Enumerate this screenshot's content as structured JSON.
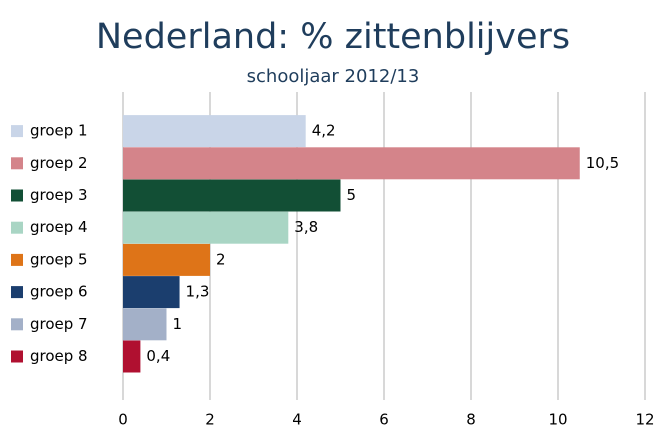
{
  "chart_data": {
    "type": "bar",
    "orientation": "horizontal",
    "title": "Nederland: % zittenblijvers",
    "subtitle": "schooljaar 2012/13",
    "categories": [
      "groep 1",
      "groep 2",
      "groep 3",
      "groep 4",
      "groep 5",
      "groep 6",
      "groep 7",
      "groep 8"
    ],
    "values": [
      4.2,
      10.5,
      5,
      3.8,
      2,
      1.3,
      1,
      0.4
    ],
    "value_labels": [
      "4,2",
      "10,5",
      "5",
      "3,8",
      "2",
      "1,3",
      "1",
      "0,4"
    ],
    "colors": [
      "#c9d5e8",
      "#d4848a",
      "#124f35",
      "#a9d5c4",
      "#de7418",
      "#1b3e6e",
      "#a3b0c8",
      "#b01030"
    ],
    "xlim": [
      0,
      12
    ],
    "xticks": [
      0,
      2,
      4,
      6,
      8,
      10,
      12
    ],
    "grid": true
  }
}
